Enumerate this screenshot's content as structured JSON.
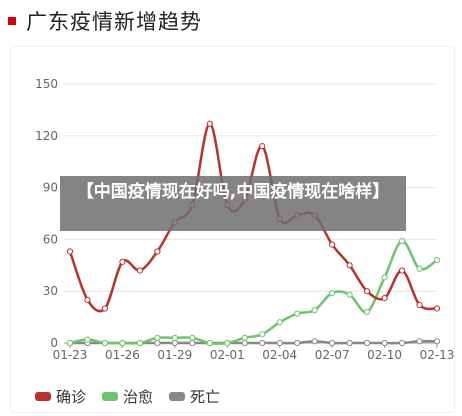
{
  "header": {
    "title": "广东疫情新增趋势"
  },
  "overlay": {
    "caption": "【中国疫情现在好吗,中国疫情现在啥样】"
  },
  "colors": {
    "confirmed": "#b8322f",
    "cured": "#6cc46c",
    "death": "#888888",
    "title_marker": "#d7000f"
  },
  "chart_data": {
    "type": "line",
    "title": "广东疫情新增趋势",
    "x": [
      "01-23",
      "01-24",
      "01-25",
      "01-26",
      "01-27",
      "01-28",
      "01-29",
      "01-30",
      "01-31",
      "02-01",
      "02-02",
      "02-03",
      "02-04",
      "02-05",
      "02-06",
      "02-07",
      "02-08",
      "02-09",
      "02-10",
      "02-11",
      "02-12",
      "02-13"
    ],
    "x_tick_labels": [
      "01-23",
      "01-26",
      "01-29",
      "02-01",
      "02-04",
      "02-07",
      "02-10",
      "02-13"
    ],
    "ylim": [
      0,
      150
    ],
    "y_ticks": [
      0,
      30,
      60,
      90,
      120,
      150
    ],
    "grid": true,
    "legend_position": "bottom-left",
    "series": [
      {
        "name": "确诊",
        "values": [
          53,
          25,
          20,
          47,
          42,
          53,
          70,
          80,
          127,
          80,
          83,
          114,
          72,
          74,
          74,
          57,
          45,
          30,
          26,
          42,
          22,
          20
        ]
      },
      {
        "name": "治愈",
        "values": [
          0,
          2,
          0,
          0,
          0,
          3,
          3,
          3,
          0,
          0,
          3,
          5,
          12,
          17,
          19,
          29,
          28,
          18,
          38,
          59,
          43,
          48
        ]
      },
      {
        "name": "死亡",
        "values": [
          0,
          0,
          0,
          0,
          0,
          0,
          0,
          0,
          0,
          0,
          0,
          0,
          0,
          0,
          1,
          0,
          0,
          0,
          0,
          0,
          1,
          1
        ]
      }
    ]
  }
}
